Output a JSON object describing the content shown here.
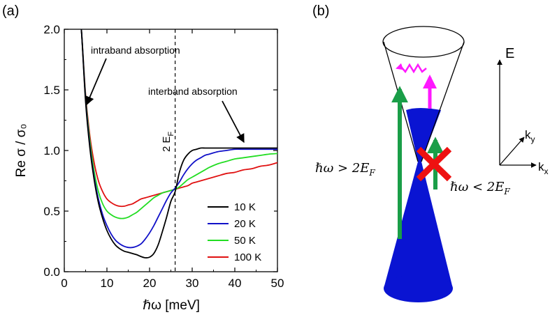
{
  "panels": {
    "a_label": "(a)",
    "b_label": "(b)"
  },
  "chart_data": {
    "type": "line",
    "title": "",
    "xlabel": "ℏω [meV]",
    "ylabel": "Re σ / σ₀",
    "xlim": [
      0,
      50
    ],
    "ylim": [
      0,
      2.0
    ],
    "x_ticks": [
      "0",
      "10",
      "20",
      "30",
      "40",
      "50"
    ],
    "y_ticks": [
      "0.0",
      "0.5",
      "1.0",
      "1.5",
      "2.0"
    ],
    "grid": false,
    "legend_placement": "bottom-right",
    "x": [
      3,
      3.5,
      4,
      5,
      6,
      7,
      8,
      9,
      10,
      11,
      12,
      13,
      14,
      15,
      16,
      17,
      18,
      19,
      20,
      21,
      22,
      23,
      24,
      25,
      26,
      27,
      28,
      29,
      30,
      31,
      32,
      33,
      34,
      36,
      38,
      40,
      42,
      44,
      46,
      48,
      50
    ],
    "series": [
      {
        "name": "10 K",
        "color": "#000000",
        "values": [
          2.2,
          2.1,
          2.0,
          1.4,
          1.02,
          0.76,
          0.57,
          0.44,
          0.34,
          0.27,
          0.22,
          0.19,
          0.17,
          0.16,
          0.15,
          0.14,
          0.125,
          0.115,
          0.12,
          0.15,
          0.22,
          0.33,
          0.45,
          0.58,
          0.66,
          0.82,
          0.92,
          0.97,
          1.0,
          1.01,
          1.02,
          1.02,
          1.02,
          1.02,
          1.02,
          1.02,
          1.02,
          1.02,
          1.02,
          1.02,
          1.02
        ]
      },
      {
        "name": "20 K",
        "color": "#1010c8",
        "values": [
          2.2,
          2.1,
          2.0,
          1.42,
          1.04,
          0.78,
          0.6,
          0.47,
          0.38,
          0.31,
          0.26,
          0.23,
          0.21,
          0.2,
          0.2,
          0.21,
          0.23,
          0.27,
          0.32,
          0.38,
          0.45,
          0.52,
          0.59,
          0.65,
          0.69,
          0.74,
          0.8,
          0.85,
          0.89,
          0.92,
          0.94,
          0.96,
          0.97,
          0.99,
          1.0,
          1.01,
          1.01,
          1.01,
          1.01,
          1.01,
          1.01
        ]
      },
      {
        "name": "50 K",
        "color": "#22dd22",
        "values": [
          2.2,
          2.1,
          2.0,
          1.44,
          1.08,
          0.83,
          0.66,
          0.56,
          0.5,
          0.47,
          0.45,
          0.44,
          0.44,
          0.45,
          0.47,
          0.49,
          0.52,
          0.55,
          0.58,
          0.61,
          0.63,
          0.65,
          0.66,
          0.67,
          0.68,
          0.7,
          0.73,
          0.76,
          0.78,
          0.8,
          0.82,
          0.84,
          0.86,
          0.89,
          0.91,
          0.93,
          0.94,
          0.95,
          0.96,
          0.97,
          0.975
        ]
      },
      {
        "name": "100 K",
        "color": "#e01010",
        "values": [
          2.2,
          2.1,
          2.0,
          1.46,
          1.12,
          0.9,
          0.75,
          0.66,
          0.6,
          0.57,
          0.55,
          0.54,
          0.54,
          0.55,
          0.56,
          0.58,
          0.6,
          0.61,
          0.62,
          0.63,
          0.64,
          0.65,
          0.66,
          0.67,
          0.68,
          0.69,
          0.7,
          0.71,
          0.73,
          0.74,
          0.75,
          0.76,
          0.77,
          0.79,
          0.81,
          0.82,
          0.84,
          0.85,
          0.87,
          0.88,
          0.9
        ]
      }
    ],
    "annotations": {
      "intraband": "intraband absorption",
      "interband": "interband absorption",
      "fermi_line": "2 E",
      "fermi_sub": "F",
      "fermi_x": 26
    }
  },
  "diagram": {
    "axis_E": "E",
    "axis_ky": "k",
    "axis_ky_sub": "y",
    "axis_kx": "k",
    "axis_kx_sub": "x",
    "label_gt": "ℏω > 2E",
    "label_gt_sub": "F",
    "label_lt": "ℏω < 2E",
    "label_lt_sub": "F",
    "cone_fill_color": "#0a14d2",
    "arrow_color": "#1a9e48",
    "relax_color": "#ff18ff",
    "cross_color": "#ee1111"
  }
}
